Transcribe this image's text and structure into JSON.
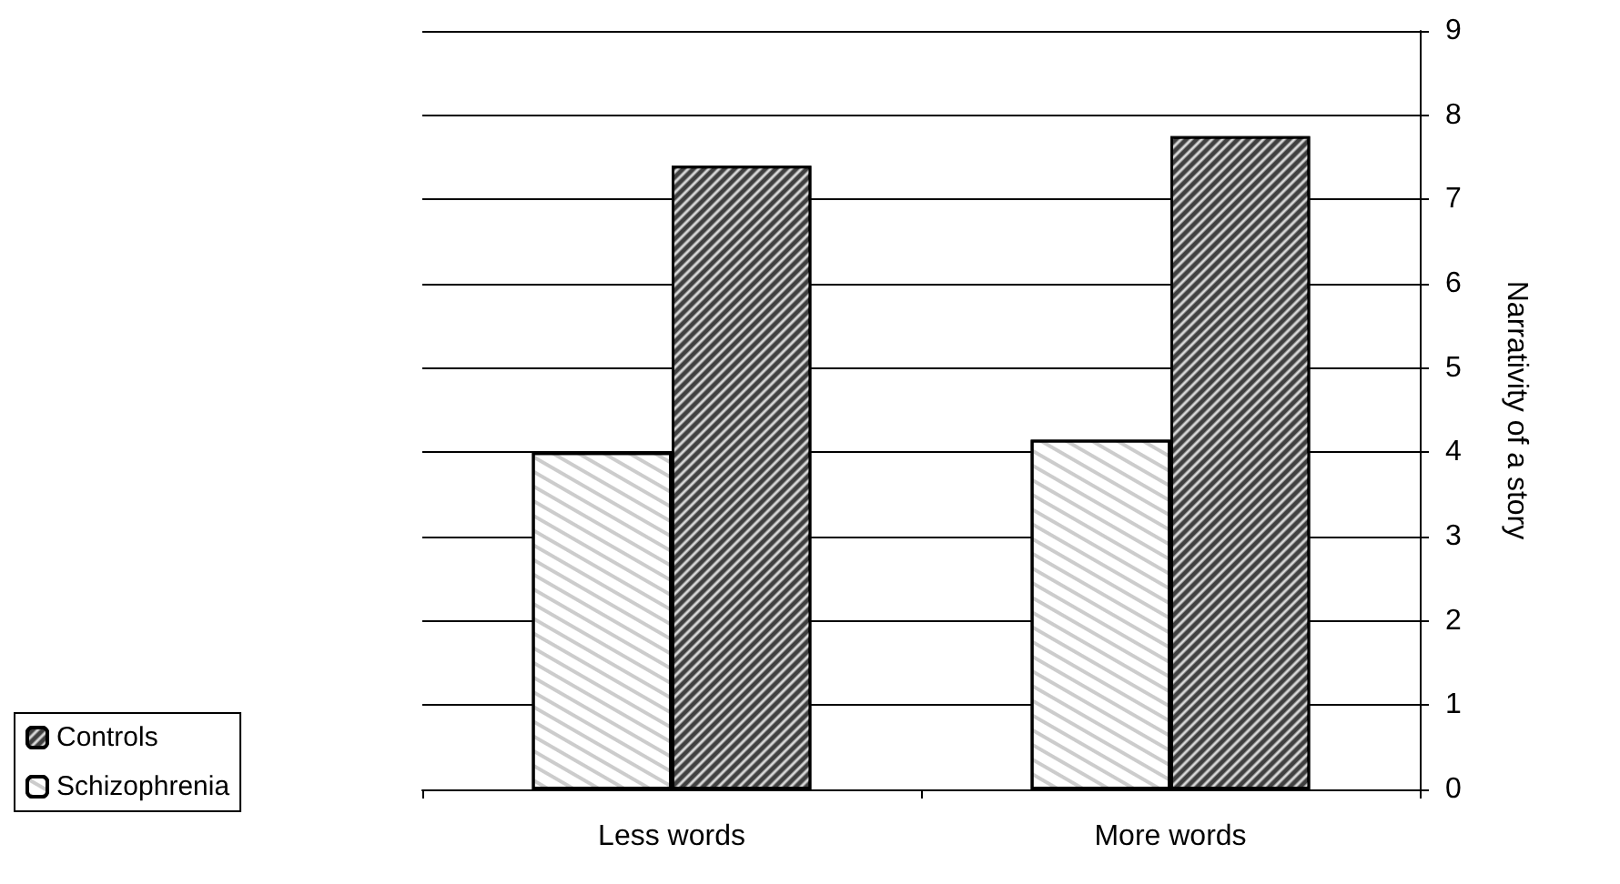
{
  "chart_data": {
    "type": "bar",
    "ylabel": "Narrativity of a story",
    "categories": [
      "Less words",
      "More words"
    ],
    "series": [
      {
        "name": "Schizophrenia",
        "color": "#ffffff",
        "values": [
          4.0,
          4.15
        ]
      },
      {
        "name": "Controls",
        "color": "#404040",
        "values": [
          7.4,
          7.75
        ]
      }
    ],
    "ylim": [
      0,
      9
    ],
    "yticks": [
      0,
      1,
      2,
      3,
      4,
      5,
      6,
      7,
      8,
      9
    ],
    "grid": "y",
    "legend": "bottom left"
  }
}
